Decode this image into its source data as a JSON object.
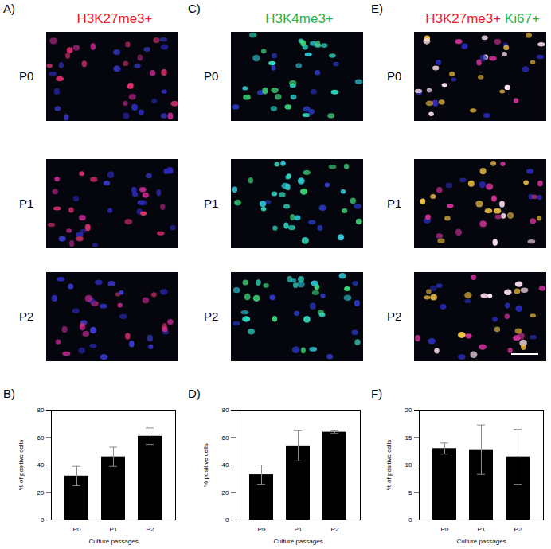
{
  "image_panels": [
    {
      "label": "A)",
      "title": [
        {
          "text": "H3K27me3+",
          "color": "#e8202a"
        }
      ],
      "rows": [
        "P0",
        "P1",
        "P2"
      ]
    },
    {
      "label": "C)",
      "title": [
        {
          "text": "H3K4me3+",
          "color": "#1db24a"
        }
      ],
      "rows": [
        "P0",
        "P1",
        "P2"
      ]
    },
    {
      "label": "E)",
      "title": [
        {
          "text": "H3K27me3+",
          "color": "#e8202a"
        },
        {
          "text": "Ki67+",
          "color": "#1db24a"
        }
      ],
      "rows": [
        "P0",
        "P1",
        "P2"
      ]
    }
  ],
  "chart_data": [
    {
      "type": "bar",
      "panel_label": "B)",
      "categories": [
        "P0",
        "P1",
        "P2"
      ],
      "values": [
        32,
        46,
        61
      ],
      "errors": [
        7,
        7,
        6
      ],
      "color": "#000000",
      "xlabel": "Culture passages",
      "ylabel": "% of positive cells",
      "ylim": [
        0,
        80
      ],
      "yticks": [
        0,
        20,
        40,
        60,
        80
      ]
    },
    {
      "type": "bar",
      "panel_label": "D)",
      "categories": [
        "P0",
        "P1",
        "P2"
      ],
      "values": [
        33,
        54,
        64
      ],
      "errors": [
        7,
        11,
        1
      ],
      "color": "#000000",
      "xlabel": "Culture passages",
      "ylabel": "% positive cells",
      "ylim": [
        0,
        80
      ],
      "yticks": [
        0,
        20,
        40,
        60,
        80
      ]
    },
    {
      "type": "bar",
      "panel_label": "F)",
      "categories": [
        "P0",
        "P1",
        "P2"
      ],
      "values": [
        13,
        12.8,
        11.5
      ],
      "errors": [
        1,
        4.5,
        5
      ],
      "color": "#000000",
      "xlabel": "Culture passages",
      "ylabel": "% of positive cells",
      "ylim": [
        0,
        20
      ],
      "yticks": [
        0,
        5,
        10,
        15,
        20
      ]
    }
  ]
}
